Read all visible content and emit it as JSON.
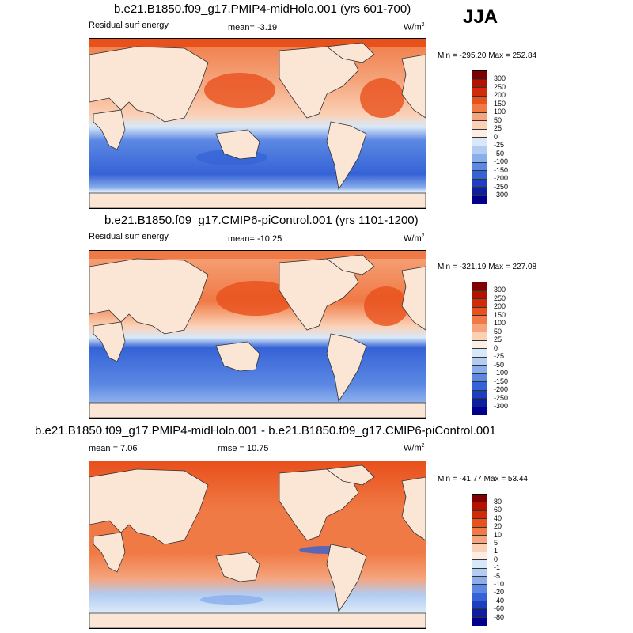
{
  "season": "JJA",
  "panels": [
    {
      "title": "b.e21.B1850.f09_g17.PMIP4-midHolo.001 (yrs 601-700)",
      "left_label": "Residual surf energy",
      "center_label": "mean=  -3.19",
      "units": "W/m",
      "units_sup": "2",
      "minmax": "Min = -295.20 Max = 252.84",
      "colorbar": [
        "300",
        "250",
        "200",
        "150",
        "100",
        "50",
        "25",
        "0",
        "-25",
        "-50",
        "-100",
        "-150",
        "-200",
        "-250",
        "-300"
      ]
    },
    {
      "title": "b.e21.B1850.f09_g17.CMIP6-piControl.001 (yrs 1101-1200)",
      "left_label": "Residual surf energy",
      "center_label": "mean= -10.25",
      "units": "W/m",
      "units_sup": "2",
      "minmax": "Min = -321.19 Max = 227.08",
      "colorbar": [
        "300",
        "250",
        "200",
        "150",
        "100",
        "50",
        "25",
        "0",
        "-25",
        "-50",
        "-100",
        "-150",
        "-200",
        "-250",
        "-300"
      ]
    },
    {
      "title": "b.e21.B1850.f09_g17.PMIP4-midHolo.001 - b.e21.B1850.f09_g17.CMIP6-piControl.001",
      "left_label": "mean =   7.06",
      "center_label": "rmse =  10.75",
      "units": "W/m",
      "units_sup": "2",
      "minmax": "Min = -41.77 Max =  53.44",
      "colorbar": [
        "80",
        "60",
        "40",
        "20",
        "10",
        "5",
        "1",
        "0",
        "-1",
        "-5",
        "-10",
        "-20",
        "-40",
        "-60",
        "-80"
      ]
    }
  ],
  "colors": {
    "scale": [
      "#7f0000",
      "#b31200",
      "#d22b0a",
      "#e8501c",
      "#f07a45",
      "#f5a47c",
      "#fbd1b6",
      "#fdeee4",
      "#d8e8f8",
      "#b3ccf2",
      "#8aaeec",
      "#5c88e3",
      "#3563d6",
      "#1c3fc0",
      "#0d1f9e",
      "#00008b"
    ],
    "land": "#fbe6d6",
    "coast": "#333333"
  }
}
